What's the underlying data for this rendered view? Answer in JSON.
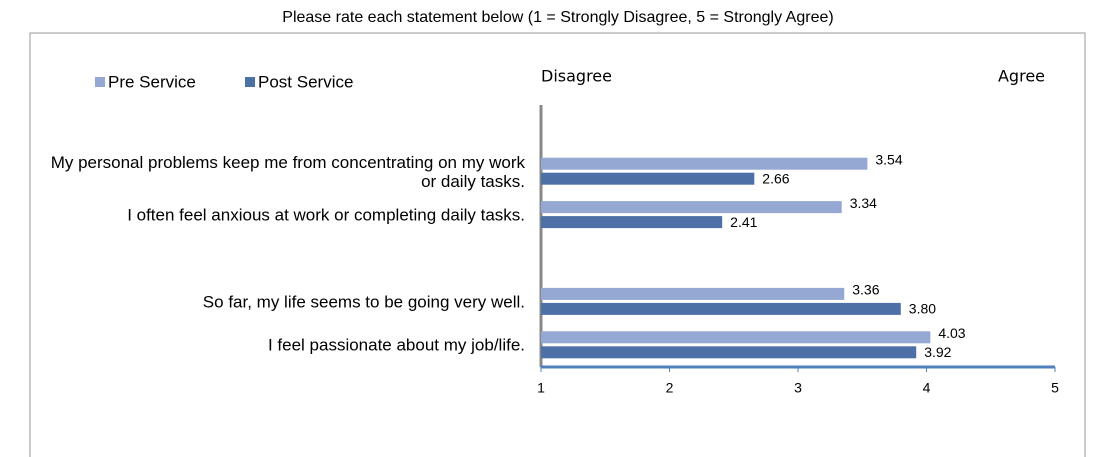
{
  "chart_data": {
    "type": "bar",
    "orientation": "horizontal",
    "title": "Please rate each statement below (1 = Strongly Disagree, 5 = Strongly Agree)",
    "annotations": [
      "Disagree",
      "Agree"
    ],
    "categories": [
      "My personal problems keep me from concentrating on my work or daily tasks.",
      "I often feel anxious at work or completing daily tasks.",
      null,
      "So far, my life seems to be going very well.",
      "I feel passionate about my job/life."
    ],
    "series": [
      {
        "name": "Pre Service",
        "color": "#95a8d3",
        "values": [
          3.54,
          3.34,
          null,
          3.36,
          4.03
        ],
        "value_labels": [
          "3.54",
          "3.34",
          null,
          "3.36",
          "4.03"
        ]
      },
      {
        "name": "Post Service",
        "color": "#4d70a6",
        "values": [
          2.66,
          2.41,
          null,
          3.8,
          3.92
        ],
        "value_labels": [
          "2.66",
          "2.41",
          null,
          "3.80",
          "3.92"
        ]
      }
    ],
    "xlim": [
      1,
      5
    ],
    "xticks": [
      1,
      2,
      3,
      4,
      5
    ],
    "legend": "top-left"
  }
}
